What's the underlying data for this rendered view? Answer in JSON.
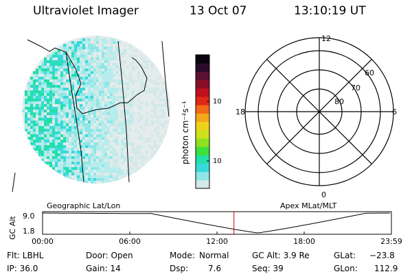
{
  "header": {
    "title": "Ultraviolet Imager",
    "date": "13 Oct 07",
    "time": "13:10:19 UT"
  },
  "colorbar": {
    "unit_label": "photon cm⁻²s⁻¹",
    "ticks": [
      "100",
      "10"
    ],
    "colors": [
      "#d4e8e8",
      "#8ee6e6",
      "#3ad9d9",
      "#22e0a8",
      "#3ee03a",
      "#8ee021",
      "#cfe01e",
      "#f0d21a",
      "#f5a81a",
      "#f06a18",
      "#e02818",
      "#c0101e",
      "#8a0e28",
      "#5a1032",
      "#2a0a2a",
      "#0a0410"
    ]
  },
  "panels": {
    "geo_label": "Geographic Lat/Lon",
    "apex_label": "Apex  MLat/MLT"
  },
  "polar": {
    "mlt_labels": {
      "top": "12",
      "bottom": "0",
      "left": "18",
      "right": "6"
    },
    "lat_labels": [
      "60",
      "70",
      "80"
    ]
  },
  "altitude_plot": {
    "ylabel": "GC Alt",
    "yticks": [
      "9.0",
      "1.8"
    ],
    "xticks": [
      "00:00",
      "06:00",
      "12:00",
      "18:00",
      "23:59"
    ],
    "current_time_marker": "13:10",
    "marker_color": "#cc0000"
  },
  "info": {
    "flt": "Flt: LBHL",
    "door": "Door: Open",
    "mode_label": "Mode:",
    "mode_value": "Normal",
    "gcalt": "GC Alt: 3.9 Re",
    "glat_label": "GLat:",
    "glat_value": "−23.8",
    "ip": "IP: 36.0",
    "gain": "Gain: 14",
    "dsp_label": "Dsp:",
    "dsp_value": "7.6",
    "seq": "Seq: 39",
    "glon_label": "GLon:",
    "glon_value": "112.9"
  }
}
